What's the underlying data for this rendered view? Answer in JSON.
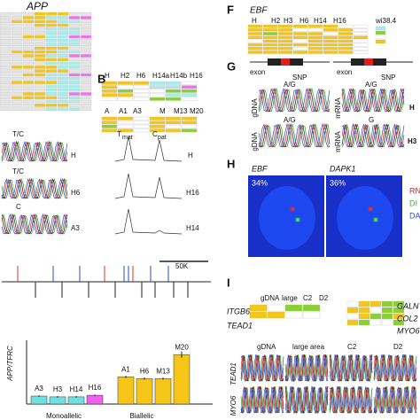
{
  "panel_a": {
    "title": "APP"
  },
  "panel_b": {
    "label": "B",
    "row1": [
      "H",
      "H2",
      "H6",
      "H14a",
      "H14b",
      "H16"
    ],
    "row2": [
      "A",
      "A1",
      "A3",
      "M",
      "M13",
      "M20"
    ]
  },
  "panel_c": {
    "traces": [
      {
        "genotype": "T/C",
        "sample": "H"
      },
      {
        "genotype": "T/C",
        "sample": "H6"
      },
      {
        "genotype": "C",
        "sample": "A3"
      }
    ]
  },
  "panel_d": {
    "allele1": "T",
    "allele1_sub": "mat",
    "allele2": "C",
    "allele2_sub": "pat",
    "samples": [
      "H",
      "H16",
      "H14"
    ]
  },
  "panel_e": {
    "scale": "50K"
  },
  "chart_data": {
    "type": "bar",
    "y_label": "APP/TFRC",
    "categories": [
      "A3",
      "H3",
      "H14",
      "H16",
      "A1",
      "H6",
      "M13",
      "M20"
    ],
    "values": [
      0.5,
      0.45,
      0.45,
      0.55,
      1.7,
      1.6,
      1.6,
      3.1
    ],
    "errors": [
      0.05,
      0.05,
      0.05,
      0.05,
      0.07,
      0.07,
      0.06,
      0.2
    ],
    "colors": [
      "#6fe0e0",
      "#6fe0e0",
      "#6fe0e0",
      "#f060f0",
      "#f5c518",
      "#f5c518",
      "#f5c518",
      "#f5c518"
    ],
    "groups": [
      "Monoallelic",
      "Biallelic"
    ],
    "ylim": [
      0,
      4
    ]
  },
  "panel_f": {
    "label": "F",
    "gene": "EBF",
    "columns": [
      "H",
      "H2",
      "H3",
      "H6",
      "H14",
      "H16"
    ],
    "reference": "wi38.4"
  },
  "panel_g": {
    "label": "G",
    "exon1": "exon",
    "snp1": "SNP",
    "exon2": "exon",
    "snp2": "SNP",
    "rows": [
      {
        "left": "gDNA",
        "left_call": "A/G",
        "right": "mRNA",
        "right_call": "A/G",
        "sample": "H"
      },
      {
        "left": "gDNA",
        "left_call": "A/G",
        "right": "mRNA",
        "right_call": "G",
        "sample": "H3"
      }
    ]
  },
  "panel_h": {
    "label": "H",
    "gene1": "EBF",
    "gene2": "DAPK1",
    "pct1": "34%",
    "pct2": "36%",
    "legend": [
      "RN",
      "DI",
      "DA"
    ]
  },
  "panel_i": {
    "label": "I",
    "columns": [
      "gDNA",
      "large",
      "C2",
      "D2"
    ],
    "genes_left": [
      "ITGB6",
      "TEAD1"
    ],
    "genes_right": [
      "GALN",
      "COL2",
      "MYO6"
    ],
    "trace_columns": [
      "gDNA",
      "large area",
      "C2",
      "D2"
    ],
    "trace_rows": [
      "TEAD1",
      "MYO6"
    ]
  }
}
